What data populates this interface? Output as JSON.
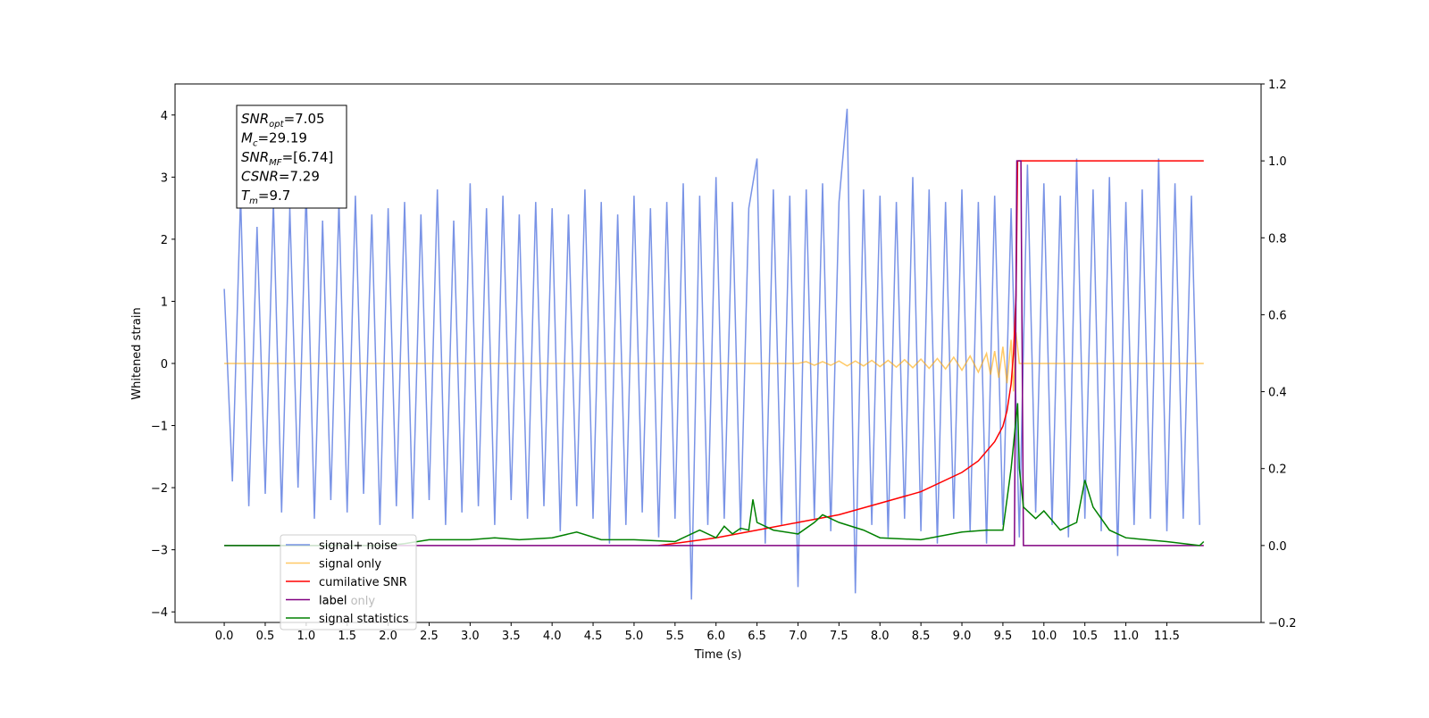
{
  "chart_data": {
    "type": "line",
    "xlabel": "Time (s)",
    "ylabel": "Whitened strain",
    "xlim": [
      -0.6,
      12.65
    ],
    "ylim": [
      -4.17,
      4.5
    ],
    "y2lim": [
      -0.2,
      1.2
    ],
    "xticks": [
      {
        "value": 0,
        "label": "0.0"
      },
      0.5,
      {
        "value": 1,
        "label": "1.0"
      },
      1.5,
      {
        "value": 2,
        "label": "2.0"
      },
      2.5,
      {
        "value": 3,
        "label": "3.0"
      },
      3.5,
      {
        "value": 4,
        "label": "4.0"
      },
      4.5,
      {
        "value": 5,
        "label": "5.0"
      },
      5.5,
      {
        "value": 6,
        "label": "6.0"
      },
      6.5,
      {
        "value": 7,
        "label": "7.0"
      },
      7.5,
      {
        "value": 8,
        "label": "8.0"
      },
      8.5,
      {
        "value": 9,
        "label": "9.0"
      },
      9.5,
      {
        "value": 10,
        "label": "10.0"
      },
      10.5,
      {
        "value": 11,
        "label": "11.0"
      },
      11.5
    ],
    "yticks": [
      {
        "value": -4,
        "label": "−4"
      },
      {
        "value": -3,
        "label": "−3"
      },
      {
        "value": -2,
        "label": "−2"
      },
      {
        "value": -1,
        "label": "−1"
      },
      0,
      1,
      2,
      3,
      4
    ],
    "y2ticks": [
      {
        "value": -0.2,
        "label": "−0.2"
      },
      {
        "value": 0,
        "label": "0.0"
      },
      0.2,
      0.4,
      0.6,
      0.8,
      {
        "value": 1,
        "label": "1.0"
      },
      1.2
    ],
    "annotations": [
      {
        "main": "SNR",
        "sub": "opt",
        "rest": "=7.05"
      },
      {
        "main": "M",
        "sub": "c",
        "rest": "=29.19"
      },
      {
        "main": "SNR",
        "sub": "MF",
        "rest": "=[6.74]"
      },
      {
        "main": "CSNR",
        "sub": "",
        "rest": "=7.29"
      },
      {
        "main": "T",
        "sub": "m",
        "rest": "=9.7"
      }
    ],
    "legend_hidden": "label only",
    "series": [
      {
        "name": "signal+ noise",
        "color": "#6a87e3",
        "opacity": 0.9,
        "x": [
          0,
          0.1,
          0.2,
          0.3,
          0.4,
          0.5,
          0.6,
          0.7,
          0.8,
          0.9,
          1,
          1.1,
          1.2,
          1.3,
          1.4,
          1.5,
          1.6,
          1.7,
          1.8,
          1.9,
          2,
          2.1,
          2.2,
          2.3,
          2.4,
          2.5,
          2.6,
          2.7,
          2.8,
          2.9,
          3,
          3.1,
          3.2,
          3.3,
          3.4,
          3.5,
          3.6,
          3.7,
          3.8,
          3.9,
          4,
          4.1,
          4.2,
          4.3,
          4.4,
          4.5,
          4.6,
          4.7,
          4.8,
          4.9,
          5,
          5.1,
          5.2,
          5.3,
          5.4,
          5.5,
          5.6,
          5.7,
          5.8,
          5.9,
          6,
          6.1,
          6.2,
          6.3,
          6.4,
          6.5,
          6.6,
          6.7,
          6.8,
          6.9,
          7,
          7.1,
          7.2,
          7.3,
          7.4,
          7.5,
          7.6,
          7.7,
          7.8,
          7.9,
          8,
          8.1,
          8.2,
          8.3,
          8.4,
          8.5,
          8.6,
          8.7,
          8.8,
          8.9,
          9,
          9.1,
          9.2,
          9.3,
          9.4,
          9.5,
          9.6,
          9.7,
          9.8,
          9.9,
          10,
          10.1,
          10.2,
          10.3,
          10.4,
          10.5,
          10.6,
          10.7,
          10.8,
          10.9,
          11,
          11.1,
          11.2,
          11.3,
          11.4,
          11.5,
          11.6,
          11.7,
          11.8,
          11.9
        ],
        "values": [
          1.2,
          -1.9,
          2.7,
          -2.3,
          2.2,
          -2.1,
          2.6,
          -2.4,
          2.5,
          -2.0,
          2.8,
          -2.5,
          2.3,
          -2.2,
          2.6,
          -2.4,
          2.7,
          -2.1,
          2.4,
          -2.6,
          2.5,
          -2.3,
          2.6,
          -2.5,
          2.4,
          -2.2,
          2.8,
          -2.6,
          2.3,
          -2.4,
          2.9,
          -2.3,
          2.5,
          -2.6,
          2.7,
          -2.2,
          2.4,
          -2.5,
          2.6,
          -2.3,
          2.5,
          -2.7,
          2.4,
          -2.3,
          2.8,
          -2.5,
          2.6,
          -2.9,
          2.4,
          -2.6,
          2.7,
          -2.4,
          2.5,
          -2.8,
          2.6,
          -2.5,
          2.9,
          -3.8,
          2.7,
          -2.6,
          3.0,
          -2.5,
          2.6,
          -2.7,
          2.5,
          3.3,
          -2.9,
          2.8,
          -2.6,
          2.7,
          -3.6,
          2.8,
          -2.5,
          2.9,
          -2.7,
          2.6,
          4.1,
          -3.7,
          2.8,
          -2.6,
          2.7,
          -2.8,
          2.6,
          -2.5,
          3.0,
          -2.7,
          2.8,
          -2.9,
          2.6,
          -2.5,
          2.8,
          -2.7,
          2.6,
          -2.9,
          2.7,
          -2.6,
          2.5,
          -2.8,
          3.2,
          -2.4,
          2.9,
          -2.6,
          2.7,
          -2.8,
          3.3,
          -2.5,
          2.8,
          -2.7,
          3.0,
          -3.1,
          2.6,
          -2.6,
          2.8,
          -2.5,
          3.3,
          -2.7,
          2.9,
          -2.5,
          2.7,
          -2.6
        ]
      },
      {
        "name": "signal only",
        "color": "#ffa500",
        "opacity": 0.6,
        "x": [
          0,
          7.0,
          7.1,
          7.2,
          7.3,
          7.4,
          7.5,
          7.6,
          7.7,
          7.8,
          7.9,
          8.0,
          8.1,
          8.2,
          8.3,
          8.4,
          8.5,
          8.6,
          8.7,
          8.8,
          8.9,
          9.0,
          9.1,
          9.2,
          9.3,
          9.35,
          9.4,
          9.45,
          9.5,
          9.55,
          9.6,
          9.63,
          9.66,
          9.7,
          11.95
        ],
        "values": [
          0,
          0,
          0.03,
          -0.03,
          0.03,
          -0.03,
          0.04,
          -0.04,
          0.04,
          -0.04,
          0.05,
          -0.05,
          0.05,
          -0.06,
          0.06,
          -0.07,
          0.07,
          -0.08,
          0.08,
          -0.09,
          0.1,
          -0.11,
          0.12,
          -0.14,
          0.16,
          -0.18,
          0.2,
          -0.23,
          0.27,
          -0.32,
          0.38,
          -0.45,
          0.5,
          0,
          0
        ]
      },
      {
        "name": "cumilative SNR",
        "color": "#ff0000",
        "opacity": 1,
        "axis": "y2",
        "x": [
          5.3,
          6,
          6.5,
          7,
          7.5,
          8,
          8.5,
          9,
          9.2,
          9.4,
          9.5,
          9.55,
          9.6,
          9.63,
          9.66,
          9.68,
          9.7,
          11.95
        ],
        "values": [
          0,
          0.02,
          0.04,
          0.06,
          0.08,
          0.11,
          0.14,
          0.19,
          0.22,
          0.27,
          0.31,
          0.35,
          0.42,
          0.5,
          0.65,
          1.0,
          1.0,
          1.0
        ]
      },
      {
        "name": "label",
        "color": "#800080",
        "opacity": 1,
        "axis": "y2",
        "x": [
          0,
          9.64,
          9.67,
          9.72,
          9.75,
          11.95
        ],
        "values": [
          0,
          0,
          1,
          1,
          0,
          0
        ]
      },
      {
        "name": "signal statistics",
        "color": "#008000",
        "opacity": 1,
        "axis": "y2",
        "x": [
          0,
          1,
          2,
          2.2,
          2.5,
          3,
          3.3,
          3.6,
          4,
          4.3,
          4.6,
          5,
          5.5,
          5.8,
          6,
          6.1,
          6.2,
          6.3,
          6.4,
          6.45,
          6.5,
          6.7,
          7,
          7.2,
          7.3,
          7.5,
          7.8,
          8,
          8.5,
          9,
          9.3,
          9.5,
          9.6,
          9.68,
          9.7,
          9.75,
          9.8,
          9.9,
          10.0,
          10.2,
          10.4,
          10.5,
          10.6,
          10.8,
          11,
          11.5,
          11.9,
          11.95
        ],
        "values": [
          0,
          0,
          0,
          0.005,
          0.015,
          0.015,
          0.02,
          0.015,
          0.02,
          0.035,
          0.015,
          0.015,
          0.01,
          0.04,
          0.02,
          0.05,
          0.03,
          0.045,
          0.04,
          0.12,
          0.06,
          0.04,
          0.03,
          0.06,
          0.08,
          0.06,
          0.04,
          0.02,
          0.015,
          0.035,
          0.04,
          0.04,
          0.2,
          0.37,
          0.2,
          0.1,
          0.09,
          0.07,
          0.09,
          0.04,
          0.06,
          0.17,
          0.1,
          0.04,
          0.02,
          0.01,
          0.0,
          0.01
        ]
      }
    ]
  }
}
